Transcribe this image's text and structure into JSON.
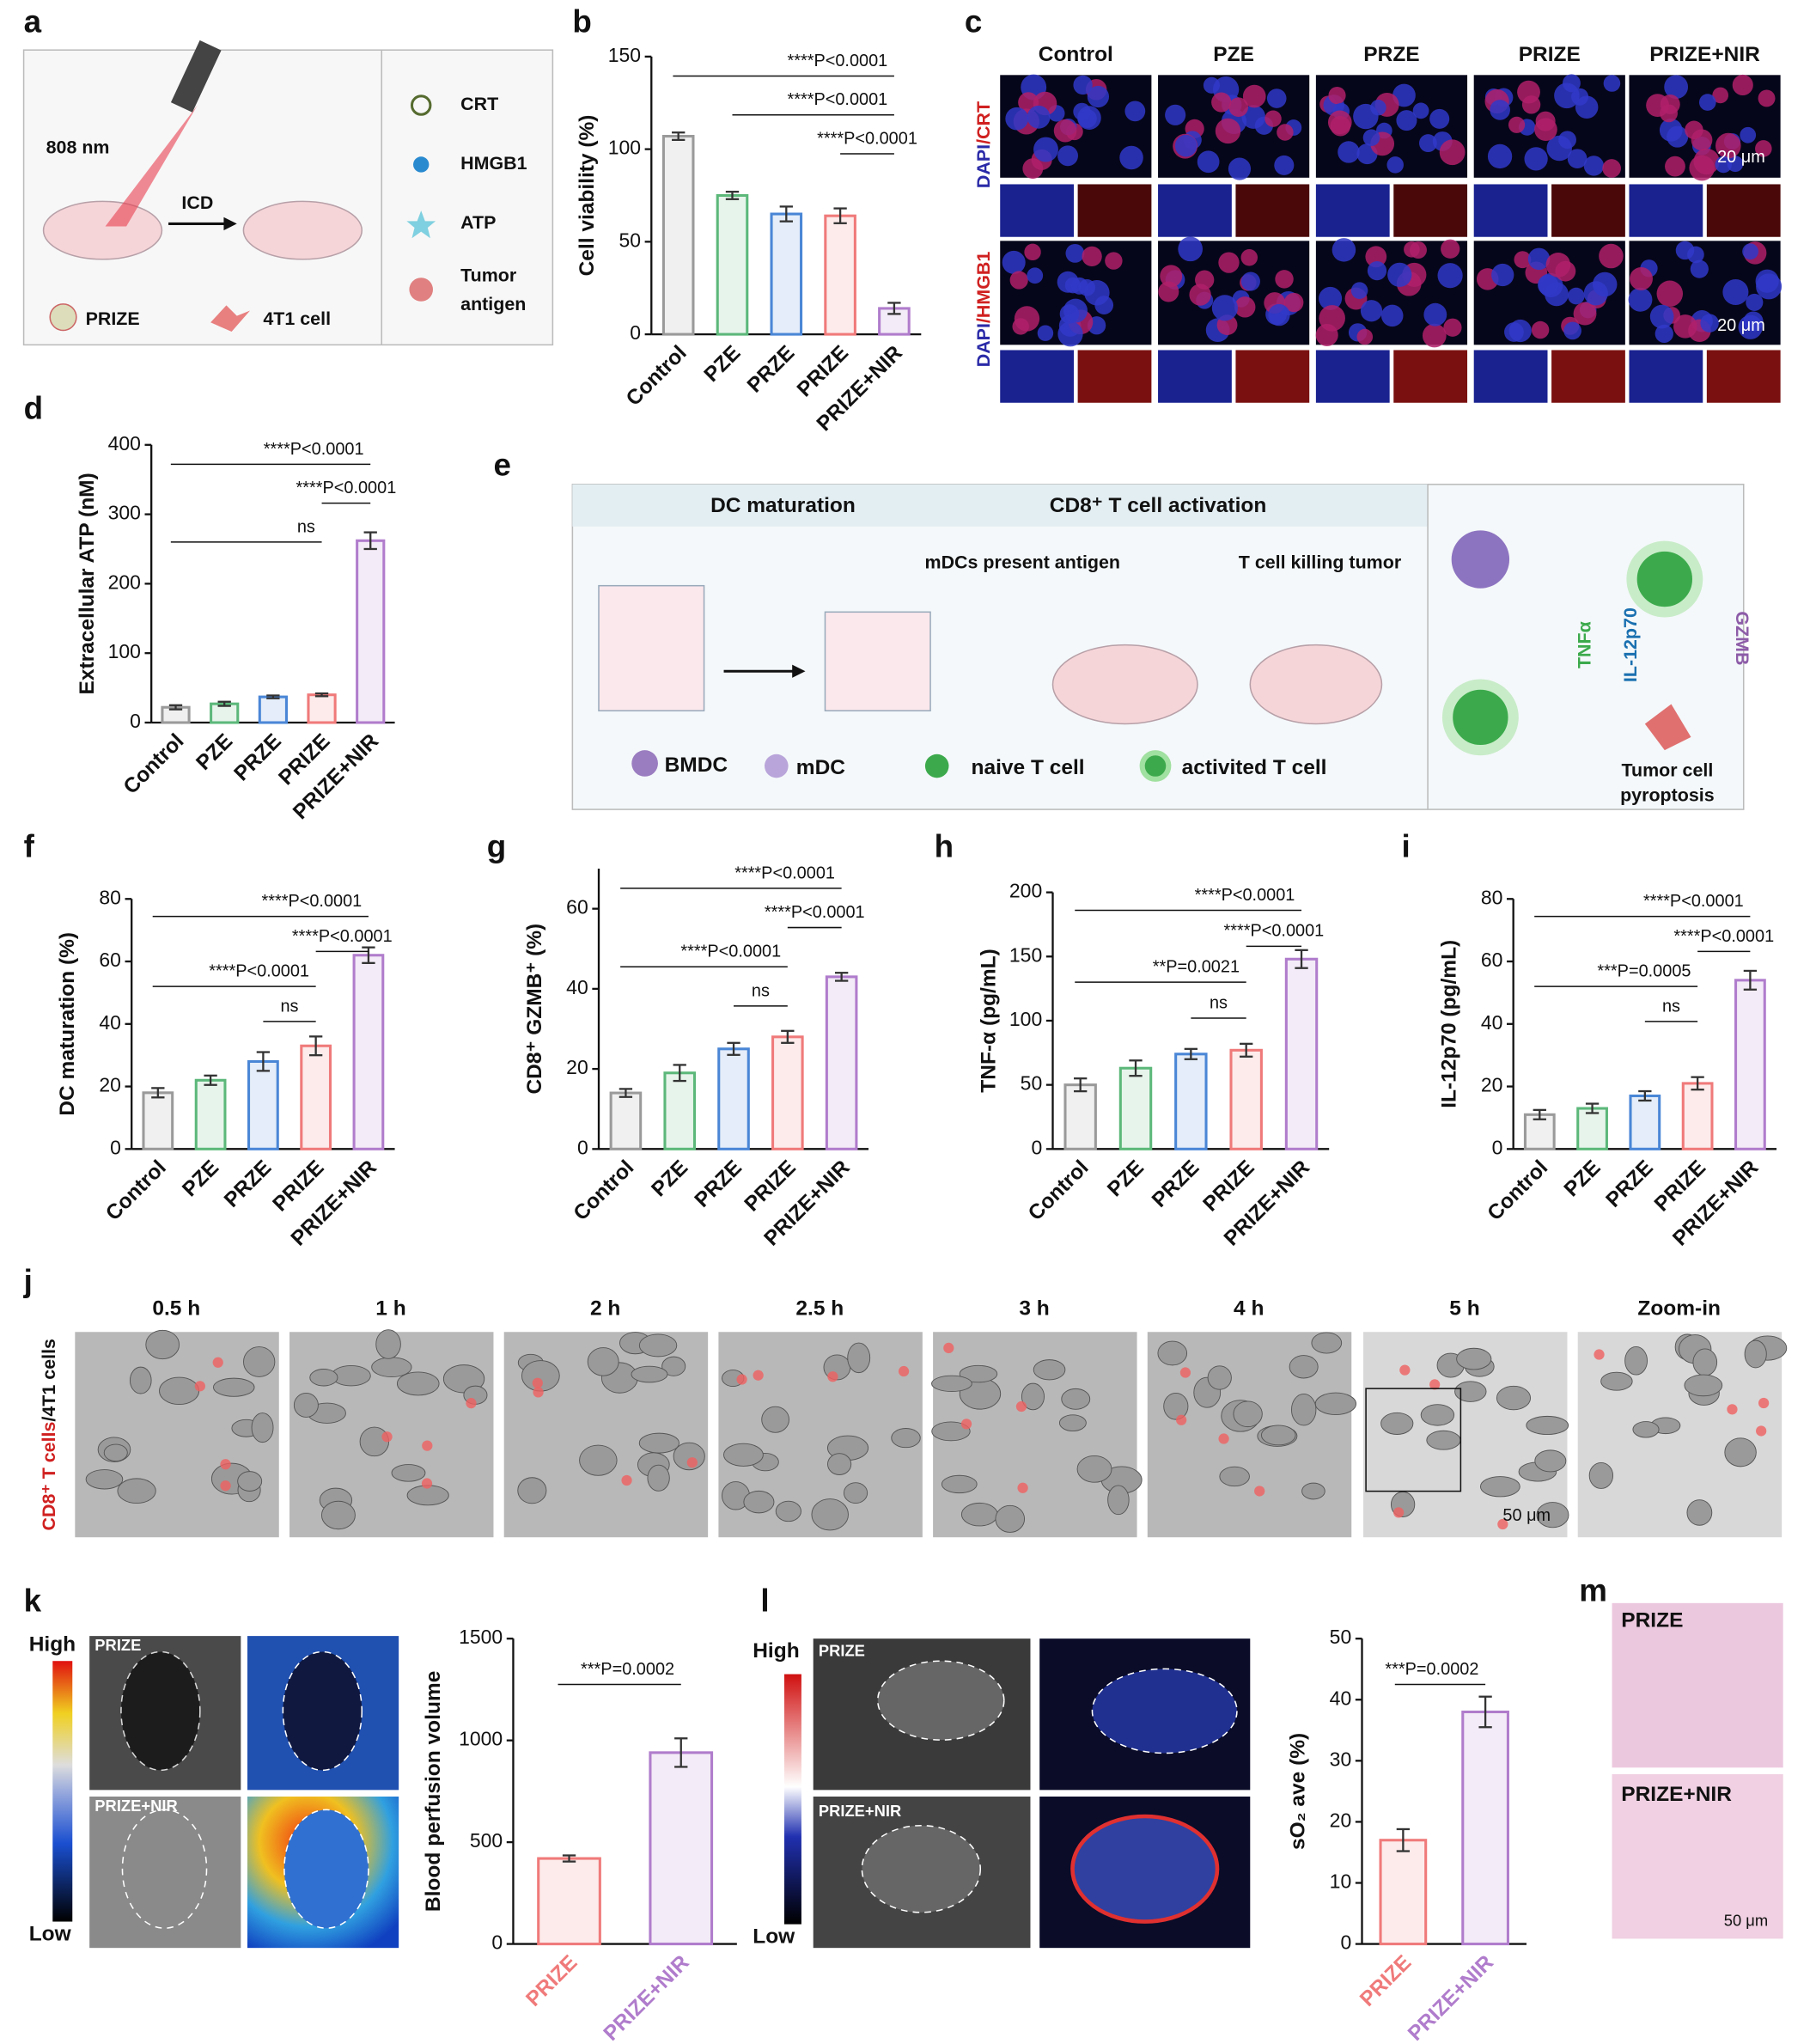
{
  "panel_labels": [
    "a",
    "b",
    "c",
    "d",
    "e",
    "f",
    "g",
    "h",
    "i",
    "j",
    "k",
    "l",
    "m"
  ],
  "panel_a": {
    "laser": "808 nm",
    "arrow": "ICD",
    "legend": [
      "CRT",
      "HMGB1",
      "ATP",
      [
        "Tumor",
        "antigen"
      ]
    ],
    "bottom": [
      "PRIZE",
      "4T1 cell"
    ]
  },
  "panel_c": {
    "columns": [
      "Control",
      "PZE",
      "PRZE",
      "PRIZE",
      "PRIZE+NIR"
    ],
    "rows": [
      [
        "DAPI",
        "/CRT"
      ],
      [
        "DAPI",
        "/HMGB1"
      ]
    ],
    "scale_bar": "20 μm"
  },
  "panel_e": {
    "sections": [
      "DC maturation",
      "CD8⁺ T cell activation"
    ],
    "steps": [
      "mDCs present antigen",
      "T cell killing tumor"
    ],
    "legend": [
      "BMDC",
      "mDC",
      "naive T cell",
      "activited T cell"
    ],
    "cytokines": [
      "TNFα",
      "IL-12p70",
      "GZMB"
    ],
    "outcome": [
      "Tumor cell",
      "pyroptosis"
    ]
  },
  "panel_j": {
    "times": [
      "0.5 h",
      "1 h",
      "2 h",
      "2.5 h",
      "3 h",
      "4 h",
      "5 h",
      "Zoom-in"
    ],
    "side_label": [
      "CD8⁺ T cells",
      "/4T1 cells"
    ],
    "scale_bar": "50 μm"
  },
  "panel_k": {
    "scale": [
      "High",
      "Low"
    ],
    "groups": [
      "PRIZE",
      "PRIZE+NIR"
    ]
  },
  "panel_l": {
    "scale": [
      "High",
      "Low"
    ],
    "groups": [
      "PRIZE",
      "PRIZE+NIR"
    ]
  },
  "panel_m": {
    "groups": [
      "PRIZE",
      "PRIZE+NIR"
    ],
    "scale_bar": "50 μm"
  },
  "chart_data": [
    {
      "type": "bar",
      "y_label": "Cell viability (%)",
      "categories": [
        "Control",
        "PZE",
        "PRZE",
        "PRIZE",
        "PRIZE+NIR"
      ],
      "values": [
        107,
        75,
        65,
        64,
        14
      ],
      "errors": [
        2,
        2,
        4,
        4,
        3
      ],
      "colors": [
        "#9a9a9a",
        "#5cb87a",
        "#4a86d6",
        "#f07a7a",
        "#b07ccc"
      ],
      "ylim": [
        0,
        150
      ],
      "yticks": [
        0,
        50,
        100,
        150
      ],
      "annotations": [
        "****P<0.0001",
        "****P<0.0001",
        "****P<0.0001"
      ]
    },
    {
      "type": "bar",
      "y_label": "Extracellular ATP (nM)",
      "categories": [
        "Control",
        "PZE",
        "PRZE",
        "PRIZE",
        "PRIZE+NIR"
      ],
      "values": [
        22,
        27,
        37,
        40,
        262
      ],
      "errors": [
        3,
        3,
        2,
        2,
        12
      ],
      "colors": [
        "#9a9a9a",
        "#5cb87a",
        "#4a86d6",
        "#f07a7a",
        "#b07ccc"
      ],
      "ylim": [
        0,
        400
      ],
      "yticks": [
        0,
        100,
        200,
        300,
        400
      ],
      "annotations": [
        "****P<0.0001",
        "****P<0.0001",
        "ns"
      ]
    },
    {
      "type": "bar",
      "y_label": "DC maturation  (%)",
      "categories": [
        "Control",
        "PZE",
        "PRZE",
        "PRIZE",
        "PRIZE+NIR"
      ],
      "values": [
        18,
        22,
        28,
        33,
        62
      ],
      "errors": [
        1.5,
        1.5,
        3,
        3,
        2.5
      ],
      "colors": [
        "#9a9a9a",
        "#5cb87a",
        "#4a86d6",
        "#f07a7a",
        "#b07ccc"
      ],
      "ylim": [
        0,
        80
      ],
      "yticks": [
        0,
        20,
        40,
        60,
        80
      ],
      "annotations": [
        "****P<0.0001",
        "****P<0.0001",
        "****P<0.0001",
        "ns"
      ]
    },
    {
      "type": "bar",
      "y_label": "CD8⁺ GZMB⁺ (%)",
      "categories": [
        "Control",
        "PZE",
        "PRZE",
        "PRIZE",
        "PRIZE+NIR"
      ],
      "values": [
        14,
        19,
        25,
        28,
        43
      ],
      "errors": [
        1,
        2,
        1.5,
        1.5,
        1
      ],
      "colors": [
        "#9a9a9a",
        "#5cb87a",
        "#4a86d6",
        "#f07a7a",
        "#b07ccc"
      ],
      "ylim": [
        0,
        70
      ],
      "yticks": [
        0,
        20,
        40,
        60
      ],
      "annotations": [
        "****P<0.0001",
        "****P<0.0001",
        "****P<0.0001",
        "ns"
      ]
    },
    {
      "type": "bar",
      "y_label": "TNF-α (pg/mL)",
      "categories": [
        "Control",
        "PZE",
        "PRZE",
        "PRIZE",
        "PRIZE+NIR"
      ],
      "values": [
        50,
        63,
        74,
        77,
        148
      ],
      "errors": [
        5,
        6,
        4,
        5,
        7
      ],
      "colors": [
        "#9a9a9a",
        "#5cb87a",
        "#4a86d6",
        "#f07a7a",
        "#b07ccc"
      ],
      "ylim": [
        0,
        200
      ],
      "yticks": [
        0,
        50,
        100,
        150,
        200
      ],
      "annotations": [
        "****P<0.0001",
        "****P<0.0001",
        "**P=0.0021",
        "ns"
      ]
    },
    {
      "type": "bar",
      "y_label": "IL-12p70 (pg/mL)",
      "categories": [
        "Control",
        "PZE",
        "PRZE",
        "PRIZE",
        "PRIZE+NIR"
      ],
      "values": [
        11,
        13,
        17,
        21,
        54
      ],
      "errors": [
        1.5,
        1.5,
        1.5,
        2,
        3
      ],
      "colors": [
        "#9a9a9a",
        "#5cb87a",
        "#4a86d6",
        "#f07a7a",
        "#b07ccc"
      ],
      "ylim": [
        0,
        80
      ],
      "yticks": [
        0,
        20,
        40,
        60,
        80
      ],
      "annotations": [
        "****P<0.0001",
        "****P<0.0001",
        "***P=0.0005",
        "ns"
      ]
    },
    {
      "type": "bar",
      "y_label": "Blood perfusion volume",
      "categories": [
        "PRIZE",
        "PRIZE+NIR"
      ],
      "values": [
        420,
        940
      ],
      "errors": [
        15,
        70
      ],
      "colors": [
        "#f07a7a",
        "#b07ccc"
      ],
      "colored_labels": true,
      "ylim": [
        0,
        1500
      ],
      "yticks": [
        0,
        500,
        1000,
        1500
      ],
      "annotations": [
        "***P=0.0002"
      ]
    },
    {
      "type": "bar",
      "y_label": "sO₂ ave (%)",
      "categories": [
        "PRIZE",
        "PRIZE+NIR"
      ],
      "values": [
        17,
        38
      ],
      "errors": [
        1.8,
        2.5
      ],
      "colors": [
        "#f07a7a",
        "#b07ccc"
      ],
      "colored_labels": true,
      "ylim": [
        0,
        50
      ],
      "yticks": [
        0,
        10,
        20,
        30,
        40,
        50
      ],
      "annotations": [
        "***P=0.0002"
      ]
    }
  ]
}
